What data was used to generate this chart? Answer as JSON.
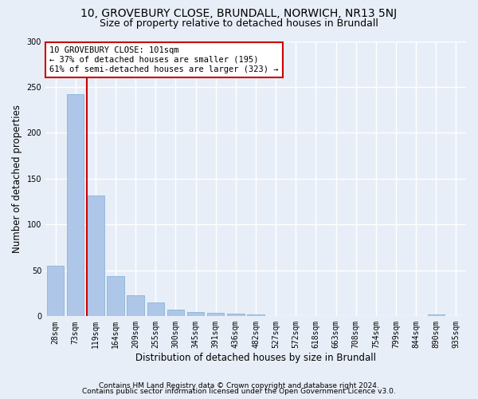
{
  "title1": "10, GROVEBURY CLOSE, BRUNDALL, NORWICH, NR13 5NJ",
  "title2": "Size of property relative to detached houses in Brundall",
  "xlabel": "Distribution of detached houses by size in Brundall",
  "ylabel": "Number of detached properties",
  "categories": [
    "28sqm",
    "73sqm",
    "119sqm",
    "164sqm",
    "209sqm",
    "255sqm",
    "300sqm",
    "345sqm",
    "391sqm",
    "436sqm",
    "482sqm",
    "527sqm",
    "572sqm",
    "618sqm",
    "663sqm",
    "708sqm",
    "754sqm",
    "799sqm",
    "844sqm",
    "890sqm",
    "935sqm"
  ],
  "values": [
    55,
    242,
    132,
    44,
    23,
    15,
    7,
    5,
    4,
    3,
    2,
    0,
    0,
    0,
    0,
    0,
    0,
    0,
    0,
    2,
    0
  ],
  "bar_color": "#aec6e8",
  "bar_edgecolor": "#8ab4d8",
  "red_line_index": 2,
  "annotation_text": "10 GROVEBURY CLOSE: 101sqm\n← 37% of detached houses are smaller (195)\n61% of semi-detached houses are larger (323) →",
  "annotation_box_facecolor": "#ffffff",
  "annotation_box_edgecolor": "#cc0000",
  "ylim": [
    0,
    300
  ],
  "yticks": [
    0,
    50,
    100,
    150,
    200,
    250,
    300
  ],
  "footer1": "Contains HM Land Registry data © Crown copyright and database right 2024.",
  "footer2": "Contains public sector information licensed under the Open Government Licence v3.0.",
  "bg_color": "#e8eef8",
  "plot_bg_color": "#e8eef8",
  "grid_color": "#ffffff",
  "title1_fontsize": 10,
  "title2_fontsize": 9,
  "tick_fontsize": 7,
  "ylabel_fontsize": 8.5,
  "xlabel_fontsize": 8.5,
  "annotation_fontsize": 7.5,
  "footer_fontsize": 6.5
}
